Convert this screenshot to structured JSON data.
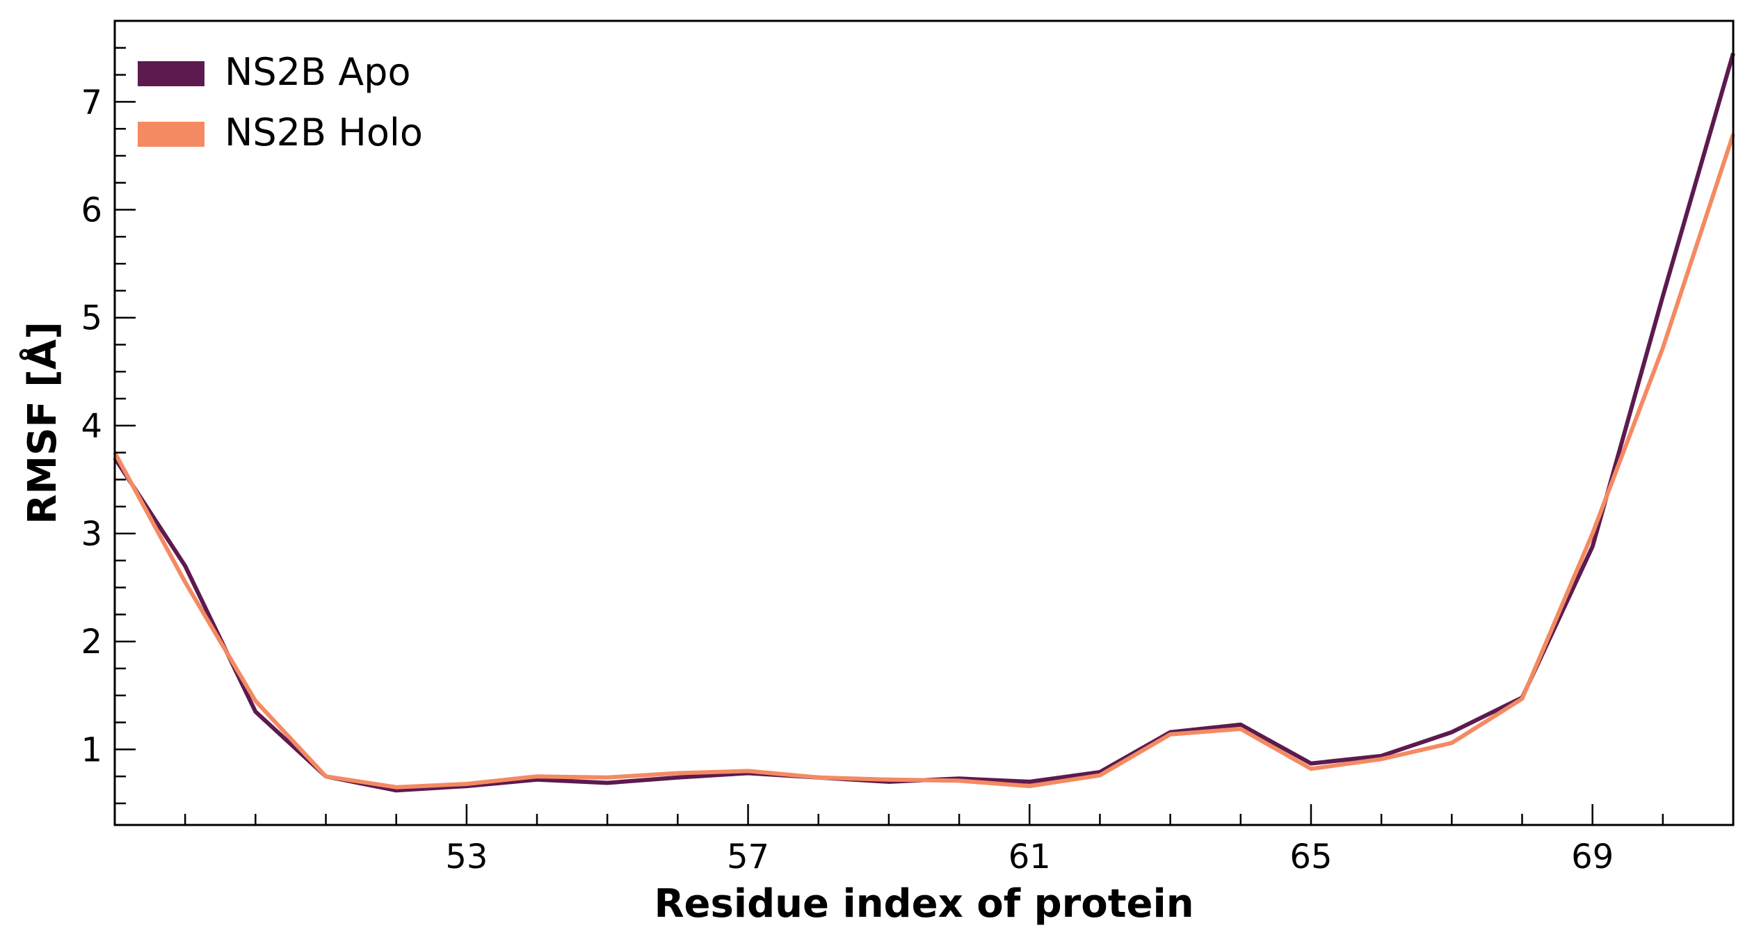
{
  "chart_data": {
    "type": "line",
    "title": "",
    "xlabel": "Residue index of protein",
    "ylabel": "RMSF [Å]",
    "xlim": [
      48,
      71
    ],
    "ylim": [
      0.3,
      7.75
    ],
    "x_ticks": [
      53,
      57,
      61,
      65,
      69
    ],
    "x_minor_step": 1,
    "y_ticks": [
      1,
      2,
      3,
      4,
      5,
      6,
      7
    ],
    "y_minor_step": 0.25,
    "grid": false,
    "legend_position": "top-left",
    "x": [
      48,
      49,
      50,
      51,
      52,
      53,
      54,
      55,
      56,
      57,
      58,
      59,
      60,
      61,
      62,
      63,
      64,
      65,
      66,
      67,
      68,
      69,
      70,
      71
    ],
    "series": [
      {
        "name": "NS2B Apo",
        "color": "#5c1a4f",
        "values": [
          3.7,
          2.7,
          1.35,
          0.75,
          0.62,
          0.66,
          0.72,
          0.69,
          0.74,
          0.78,
          0.74,
          0.7,
          0.73,
          0.7,
          0.79,
          1.16,
          1.23,
          0.87,
          0.94,
          1.16,
          1.48,
          2.88,
          5.2,
          7.45
        ]
      },
      {
        "name": "NS2B Holo",
        "color": "#f48a62",
        "values": [
          3.75,
          2.55,
          1.45,
          0.75,
          0.65,
          0.68,
          0.75,
          0.74,
          0.78,
          0.8,
          0.74,
          0.72,
          0.71,
          0.66,
          0.76,
          1.14,
          1.19,
          0.82,
          0.91,
          1.06,
          1.47,
          3.0,
          4.72,
          6.7
        ]
      }
    ]
  }
}
